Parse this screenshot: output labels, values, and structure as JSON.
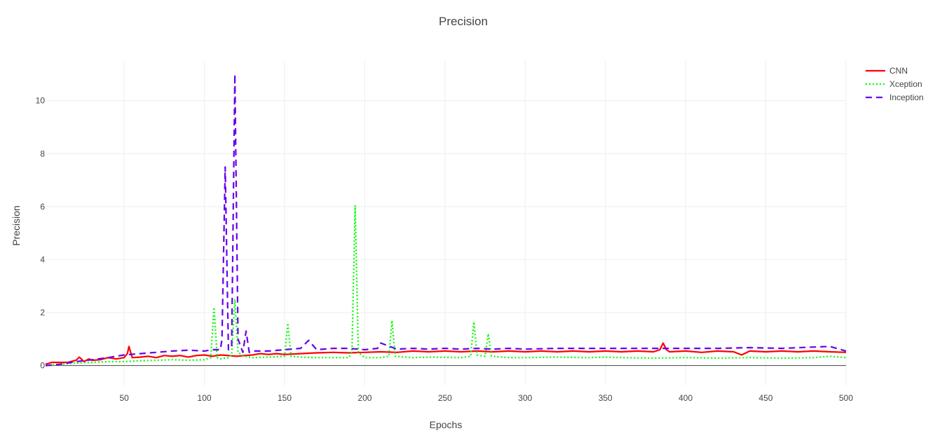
{
  "chart_data": {
    "type": "line",
    "title": "Precision",
    "xlabel": "Epochs",
    "ylabel": "Precision",
    "xlim": [
      1,
      500
    ],
    "ylim": [
      -0.75,
      11.5
    ],
    "xticks": [
      50,
      100,
      150,
      200,
      250,
      300,
      350,
      400,
      450,
      500
    ],
    "yticks": [
      0,
      2,
      4,
      6,
      8,
      10
    ],
    "grid": true,
    "legend_position": "top-right",
    "series": [
      {
        "name": "CNN",
        "color": "#ff0000",
        "dash": "solid",
        "x": [
          1,
          5,
          10,
          15,
          20,
          22,
          25,
          28,
          30,
          35,
          40,
          45,
          50,
          52,
          53,
          55,
          60,
          65,
          70,
          75,
          80,
          85,
          90,
          95,
          100,
          105,
          110,
          115,
          120,
          125,
          130,
          135,
          140,
          145,
          150,
          160,
          170,
          180,
          190,
          200,
          210,
          220,
          230,
          240,
          250,
          260,
          270,
          280,
          290,
          300,
          310,
          320,
          330,
          340,
          350,
          360,
          370,
          380,
          384,
          386,
          388,
          390,
          400,
          410,
          420,
          430,
          435,
          440,
          450,
          460,
          470,
          480,
          490,
          500
        ],
        "y": [
          0.05,
          0.12,
          0.12,
          0.12,
          0.2,
          0.32,
          0.15,
          0.25,
          0.2,
          0.22,
          0.3,
          0.25,
          0.3,
          0.45,
          0.72,
          0.3,
          0.32,
          0.35,
          0.3,
          0.38,
          0.35,
          0.38,
          0.32,
          0.38,
          0.4,
          0.35,
          0.4,
          0.38,
          0.35,
          0.38,
          0.4,
          0.45,
          0.42,
          0.45,
          0.42,
          0.45,
          0.48,
          0.5,
          0.48,
          0.5,
          0.52,
          0.5,
          0.55,
          0.52,
          0.55,
          0.52,
          0.55,
          0.52,
          0.55,
          0.52,
          0.55,
          0.52,
          0.55,
          0.52,
          0.55,
          0.52,
          0.55,
          0.52,
          0.6,
          0.85,
          0.6,
          0.52,
          0.55,
          0.5,
          0.55,
          0.52,
          0.4,
          0.55,
          0.52,
          0.55,
          0.52,
          0.55,
          0.52,
          0.5
        ]
      },
      {
        "name": "Xception",
        "color": "#00ff00",
        "dash": "dotted",
        "x": [
          1,
          10,
          20,
          30,
          40,
          50,
          60,
          70,
          80,
          90,
          100,
          104,
          106,
          108,
          110,
          115,
          117,
          119,
          121,
          125,
          130,
          140,
          150,
          152,
          154,
          160,
          170,
          180,
          190,
          192,
          194,
          196,
          200,
          210,
          215,
          217,
          219,
          230,
          240,
          260,
          266,
          268,
          270,
          275,
          277,
          279,
          290,
          300,
          320,
          340,
          350,
          360,
          380,
          400,
          420,
          440,
          460,
          480,
          490,
          500
        ],
        "y": [
          0,
          0.05,
          0.1,
          0.12,
          0.15,
          0.15,
          0.18,
          0.2,
          0.22,
          0.2,
          0.22,
          0.3,
          2.2,
          0.3,
          0.25,
          0.3,
          0.4,
          2.5,
          0.5,
          0.35,
          0.3,
          0.32,
          0.35,
          1.6,
          0.35,
          0.32,
          0.3,
          0.3,
          0.3,
          0.5,
          6.05,
          0.5,
          0.3,
          0.3,
          0.35,
          1.7,
          0.35,
          0.3,
          0.32,
          0.3,
          0.35,
          1.65,
          0.4,
          0.35,
          1.2,
          0.35,
          0.3,
          0.3,
          0.32,
          0.3,
          0.32,
          0.3,
          0.28,
          0.3,
          0.28,
          0.3,
          0.28,
          0.3,
          0.35,
          0.3
        ]
      },
      {
        "name": "Inception",
        "color": "#6600ee",
        "dash": "dashed",
        "x": [
          1,
          10,
          20,
          30,
          40,
          50,
          60,
          70,
          80,
          90,
          100,
          105,
          110,
          111,
          113,
          115,
          117,
          119,
          121,
          124,
          126,
          128,
          130,
          140,
          150,
          160,
          165,
          170,
          180,
          190,
          200,
          208,
          210,
          220,
          230,
          240,
          250,
          260,
          270,
          280,
          290,
          300,
          320,
          340,
          360,
          380,
          400,
          420,
          440,
          460,
          480,
          490,
          500
        ],
        "y": [
          0,
          0.05,
          0.15,
          0.22,
          0.3,
          0.4,
          0.45,
          0.5,
          0.55,
          0.58,
          0.55,
          0.6,
          0.6,
          1.0,
          7.5,
          0.6,
          0.7,
          11.0,
          1.0,
          0.5,
          1.3,
          0.5,
          0.55,
          0.55,
          0.6,
          0.65,
          0.95,
          0.6,
          0.65,
          0.65,
          0.6,
          0.65,
          0.85,
          0.62,
          0.65,
          0.62,
          0.65,
          0.62,
          0.65,
          0.62,
          0.65,
          0.62,
          0.65,
          0.65,
          0.65,
          0.65,
          0.65,
          0.65,
          0.68,
          0.65,
          0.7,
          0.72,
          0.55
        ]
      }
    ]
  }
}
